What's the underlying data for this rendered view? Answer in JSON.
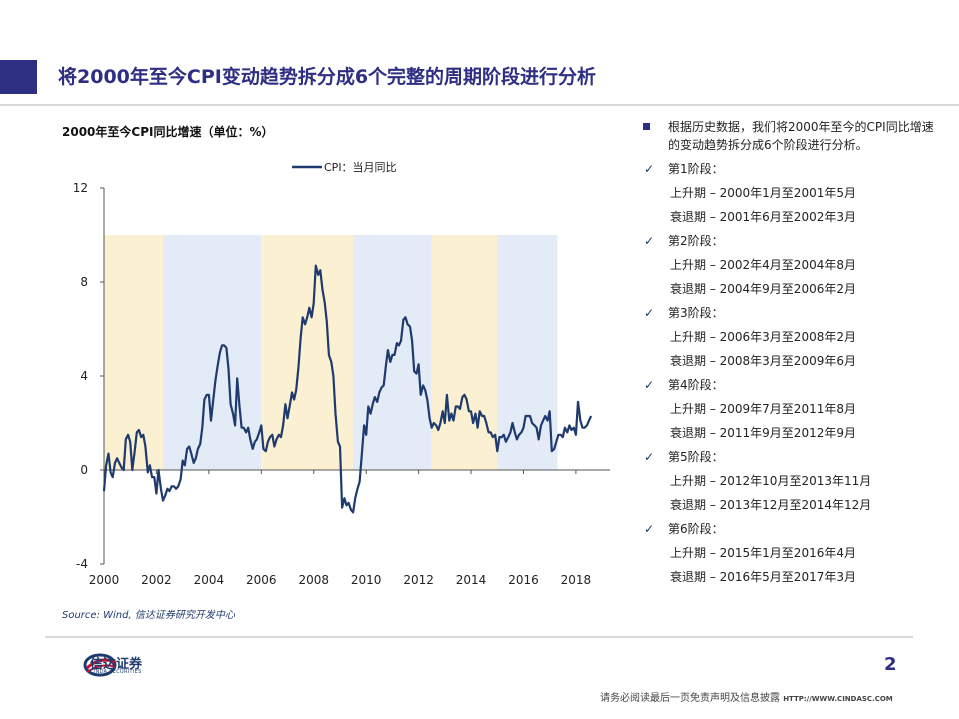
{
  "slide": {
    "title": "将2000年至今CPI变动趋势拆分成6个完整的周期阶段进行分析",
    "accent_color": "#2e2f82"
  },
  "chart": {
    "title": "2000年至今CPI同比增速（单位：%）",
    "source": "Source: Wind, 信达证券研究开发中心"
  },
  "chart_data": {
    "type": "line",
    "legend": [
      "CPI：当月同比"
    ],
    "legend_position": "top-center",
    "ylim": [
      -4,
      12
    ],
    "yticks": [
      -4,
      0,
      4,
      8,
      12
    ],
    "xlim": [
      2000,
      2019.3
    ],
    "xticks": [
      2000,
      2002,
      2004,
      2006,
      2008,
      2010,
      2012,
      2014,
      2016,
      2018
    ],
    "grid": false,
    "band_range": [
      0,
      10
    ],
    "bands": [
      {
        "start": 2000.0,
        "end": 2002.25,
        "color": "#fbf1d2"
      },
      {
        "start": 2002.25,
        "end": 2006.0,
        "color": "#e3ebf6"
      },
      {
        "start": 2006.0,
        "end": 2009.5,
        "color": "#fbf1d2"
      },
      {
        "start": 2009.5,
        "end": 2012.5,
        "color": "#e3ebf6"
      },
      {
        "start": 2012.5,
        "end": 2015.0,
        "color": "#fbf1d2"
      },
      {
        "start": 2015.0,
        "end": 2017.3,
        "color": "#e3ebf6"
      }
    ],
    "line_color": "#1f3a6e",
    "series": [
      {
        "name": "CPI：当月同比",
        "points": [
          [
            2000.0,
            -0.9
          ],
          [
            2000.08,
            0.2
          ],
          [
            2000.17,
            0.7
          ],
          [
            2000.25,
            -0.1
          ],
          [
            2000.33,
            -0.3
          ],
          [
            2000.42,
            0.3
          ],
          [
            2000.5,
            0.5
          ],
          [
            2000.58,
            0.3
          ],
          [
            2000.67,
            0.1
          ],
          [
            2000.75,
            0.0
          ],
          [
            2000.83,
            1.3
          ],
          [
            2000.92,
            1.5
          ],
          [
            2001.0,
            1.2
          ],
          [
            2001.08,
            0.0
          ],
          [
            2001.17,
            0.8
          ],
          [
            2001.25,
            1.6
          ],
          [
            2001.33,
            1.7
          ],
          [
            2001.42,
            1.4
          ],
          [
            2001.5,
            1.5
          ],
          [
            2001.58,
            1.0
          ],
          [
            2001.67,
            -0.1
          ],
          [
            2001.75,
            0.2
          ],
          [
            2001.83,
            -0.3
          ],
          [
            2001.92,
            -0.3
          ],
          [
            2002.0,
            -1.0
          ],
          [
            2002.08,
            0.0
          ],
          [
            2002.17,
            -0.8
          ],
          [
            2002.25,
            -1.3
          ],
          [
            2002.33,
            -1.1
          ],
          [
            2002.42,
            -0.8
          ],
          [
            2002.5,
            -0.9
          ],
          [
            2002.58,
            -0.7
          ],
          [
            2002.67,
            -0.7
          ],
          [
            2002.75,
            -0.8
          ],
          [
            2002.83,
            -0.7
          ],
          [
            2002.92,
            -0.4
          ],
          [
            2003.0,
            0.4
          ],
          [
            2003.08,
            0.2
          ],
          [
            2003.17,
            0.9
          ],
          [
            2003.25,
            1.0
          ],
          [
            2003.33,
            0.7
          ],
          [
            2003.42,
            0.3
          ],
          [
            2003.5,
            0.5
          ],
          [
            2003.58,
            0.9
          ],
          [
            2003.67,
            1.1
          ],
          [
            2003.75,
            1.8
          ],
          [
            2003.83,
            3.0
          ],
          [
            2003.92,
            3.2
          ],
          [
            2004.0,
            3.2
          ],
          [
            2004.08,
            2.1
          ],
          [
            2004.17,
            3.0
          ],
          [
            2004.25,
            3.8
          ],
          [
            2004.33,
            4.4
          ],
          [
            2004.42,
            5.0
          ],
          [
            2004.5,
            5.3
          ],
          [
            2004.58,
            5.3
          ],
          [
            2004.67,
            5.2
          ],
          [
            2004.75,
            4.3
          ],
          [
            2004.83,
            2.8
          ],
          [
            2004.92,
            2.4
          ],
          [
            2005.0,
            1.9
          ],
          [
            2005.08,
            3.9
          ],
          [
            2005.17,
            2.7
          ],
          [
            2005.25,
            1.8
          ],
          [
            2005.33,
            1.8
          ],
          [
            2005.42,
            1.6
          ],
          [
            2005.5,
            1.8
          ],
          [
            2005.58,
            1.3
          ],
          [
            2005.67,
            0.9
          ],
          [
            2005.75,
            1.2
          ],
          [
            2005.83,
            1.3
          ],
          [
            2005.92,
            1.6
          ],
          [
            2006.0,
            1.9
          ],
          [
            2006.08,
            0.9
          ],
          [
            2006.17,
            0.8
          ],
          [
            2006.25,
            1.2
          ],
          [
            2006.33,
            1.4
          ],
          [
            2006.42,
            1.5
          ],
          [
            2006.5,
            1.0
          ],
          [
            2006.58,
            1.3
          ],
          [
            2006.67,
            1.5
          ],
          [
            2006.75,
            1.4
          ],
          [
            2006.83,
            1.9
          ],
          [
            2006.92,
            2.8
          ],
          [
            2007.0,
            2.2
          ],
          [
            2007.08,
            2.7
          ],
          [
            2007.17,
            3.3
          ],
          [
            2007.25,
            3.0
          ],
          [
            2007.33,
            3.4
          ],
          [
            2007.42,
            4.4
          ],
          [
            2007.5,
            5.6
          ],
          [
            2007.58,
            6.5
          ],
          [
            2007.67,
            6.2
          ],
          [
            2007.75,
            6.5
          ],
          [
            2007.83,
            6.9
          ],
          [
            2007.92,
            6.5
          ],
          [
            2008.0,
            7.1
          ],
          [
            2008.08,
            8.7
          ],
          [
            2008.17,
            8.3
          ],
          [
            2008.25,
            8.5
          ],
          [
            2008.33,
            7.7
          ],
          [
            2008.42,
            7.1
          ],
          [
            2008.5,
            6.3
          ],
          [
            2008.58,
            4.9
          ],
          [
            2008.67,
            4.6
          ],
          [
            2008.75,
            4.0
          ],
          [
            2008.83,
            2.4
          ],
          [
            2008.92,
            1.2
          ],
          [
            2009.0,
            1.0
          ],
          [
            2009.08,
            -1.6
          ],
          [
            2009.17,
            -1.2
          ],
          [
            2009.25,
            -1.5
          ],
          [
            2009.33,
            -1.4
          ],
          [
            2009.42,
            -1.7
          ],
          [
            2009.5,
            -1.8
          ],
          [
            2009.58,
            -1.2
          ],
          [
            2009.67,
            -0.8
          ],
          [
            2009.75,
            -0.5
          ],
          [
            2009.83,
            0.6
          ],
          [
            2009.92,
            1.9
          ],
          [
            2010.0,
            1.5
          ],
          [
            2010.08,
            2.7
          ],
          [
            2010.17,
            2.4
          ],
          [
            2010.25,
            2.8
          ],
          [
            2010.33,
            3.1
          ],
          [
            2010.42,
            2.9
          ],
          [
            2010.5,
            3.3
          ],
          [
            2010.58,
            3.5
          ],
          [
            2010.67,
            3.6
          ],
          [
            2010.75,
            4.4
          ],
          [
            2010.83,
            5.1
          ],
          [
            2010.92,
            4.6
          ],
          [
            2011.0,
            4.9
          ],
          [
            2011.08,
            4.9
          ],
          [
            2011.17,
            5.4
          ],
          [
            2011.25,
            5.3
          ],
          [
            2011.33,
            5.5
          ],
          [
            2011.42,
            6.4
          ],
          [
            2011.5,
            6.5
          ],
          [
            2011.58,
            6.2
          ],
          [
            2011.67,
            6.1
          ],
          [
            2011.75,
            5.5
          ],
          [
            2011.83,
            4.2
          ],
          [
            2011.92,
            4.1
          ],
          [
            2012.0,
            4.5
          ],
          [
            2012.08,
            3.2
          ],
          [
            2012.17,
            3.6
          ],
          [
            2012.25,
            3.4
          ],
          [
            2012.33,
            3.0
          ],
          [
            2012.42,
            2.2
          ],
          [
            2012.5,
            1.8
          ],
          [
            2012.58,
            2.0
          ],
          [
            2012.67,
            1.9
          ],
          [
            2012.75,
            1.7
          ],
          [
            2012.83,
            2.0
          ],
          [
            2012.92,
            2.5
          ],
          [
            2013.0,
            2.0
          ],
          [
            2013.08,
            3.2
          ],
          [
            2013.17,
            2.1
          ],
          [
            2013.25,
            2.4
          ],
          [
            2013.33,
            2.1
          ],
          [
            2013.42,
            2.7
          ],
          [
            2013.5,
            2.7
          ],
          [
            2013.58,
            2.6
          ],
          [
            2013.67,
            3.1
          ],
          [
            2013.75,
            3.2
          ],
          [
            2013.83,
            3.0
          ],
          [
            2013.92,
            2.5
          ],
          [
            2014.0,
            2.5
          ],
          [
            2014.08,
            2.0
          ],
          [
            2014.17,
            2.4
          ],
          [
            2014.25,
            1.8
          ],
          [
            2014.33,
            2.5
          ],
          [
            2014.42,
            2.3
          ],
          [
            2014.5,
            2.3
          ],
          [
            2014.58,
            2.0
          ],
          [
            2014.67,
            1.6
          ],
          [
            2014.75,
            1.6
          ],
          [
            2014.83,
            1.4
          ],
          [
            2014.92,
            1.5
          ],
          [
            2015.0,
            0.8
          ],
          [
            2015.08,
            1.4
          ],
          [
            2015.17,
            1.4
          ],
          [
            2015.25,
            1.5
          ],
          [
            2015.33,
            1.2
          ],
          [
            2015.42,
            1.4
          ],
          [
            2015.5,
            1.6
          ],
          [
            2015.58,
            2.0
          ],
          [
            2015.67,
            1.6
          ],
          [
            2015.75,
            1.3
          ],
          [
            2015.83,
            1.5
          ],
          [
            2015.92,
            1.6
          ],
          [
            2016.0,
            1.8
          ],
          [
            2016.08,
            2.3
          ],
          [
            2016.17,
            2.3
          ],
          [
            2016.25,
            2.3
          ],
          [
            2016.33,
            2.0
          ],
          [
            2016.42,
            1.9
          ],
          [
            2016.5,
            1.8
          ],
          [
            2016.58,
            1.3
          ],
          [
            2016.67,
            1.9
          ],
          [
            2016.75,
            2.1
          ],
          [
            2016.83,
            2.3
          ],
          [
            2016.92,
            2.1
          ],
          [
            2017.0,
            2.5
          ],
          [
            2017.08,
            0.8
          ],
          [
            2017.17,
            0.9
          ],
          [
            2017.25,
            1.2
          ],
          [
            2017.33,
            1.5
          ],
          [
            2017.42,
            1.5
          ],
          [
            2017.5,
            1.4
          ],
          [
            2017.58,
            1.8
          ],
          [
            2017.67,
            1.6
          ],
          [
            2017.75,
            1.9
          ],
          [
            2017.83,
            1.7
          ],
          [
            2017.92,
            1.8
          ],
          [
            2018.0,
            1.5
          ],
          [
            2018.08,
            2.9
          ],
          [
            2018.17,
            2.1
          ],
          [
            2018.25,
            1.8
          ],
          [
            2018.33,
            1.8
          ],
          [
            2018.42,
            1.9
          ],
          [
            2018.5,
            2.1
          ],
          [
            2018.58,
            2.3
          ]
        ]
      }
    ]
  },
  "bullets": {
    "intro": "根据历史数据，我们将2000年至今的CPI同比增速的变动趋势拆分成6个阶段进行分析。",
    "stages": [
      {
        "label": "第1阶段：",
        "up": "上升期 – 2000年1月至2001年5月",
        "down": "衰退期 – 2001年6月至2002年3月"
      },
      {
        "label": "第2阶段：",
        "up": "上升期 – 2002年4月至2004年8月",
        "down": "衰退期 – 2004年9月至2006年2月"
      },
      {
        "label": "第3阶段：",
        "up": "上升期 – 2006年3月至2008年2月",
        "down": "衰退期 – 2008年3月至2009年6月"
      },
      {
        "label": "第4阶段：",
        "up": "上升期 – 2009年7月至2011年8月",
        "down": "衰退期 – 2011年9月至2012年9月"
      },
      {
        "label": "第5阶段：",
        "up": "上升期 – 2012年10月至2013年11月",
        "down": "衰退期 – 2013年12月至2014年12月"
      },
      {
        "label": "第6阶段：",
        "up": "上升期 – 2015年1月至2016年4月",
        "down": "衰退期 – 2016年5月至2017年3月"
      }
    ]
  },
  "footer": {
    "logo_name": "信达证券",
    "logo_sub": "CINDA SECURITIES",
    "page_number": "2",
    "disclaimer": "请务必阅读最后一页免责声明及信息披露",
    "url": "HTTP://WWW.CINDASC.COM"
  }
}
